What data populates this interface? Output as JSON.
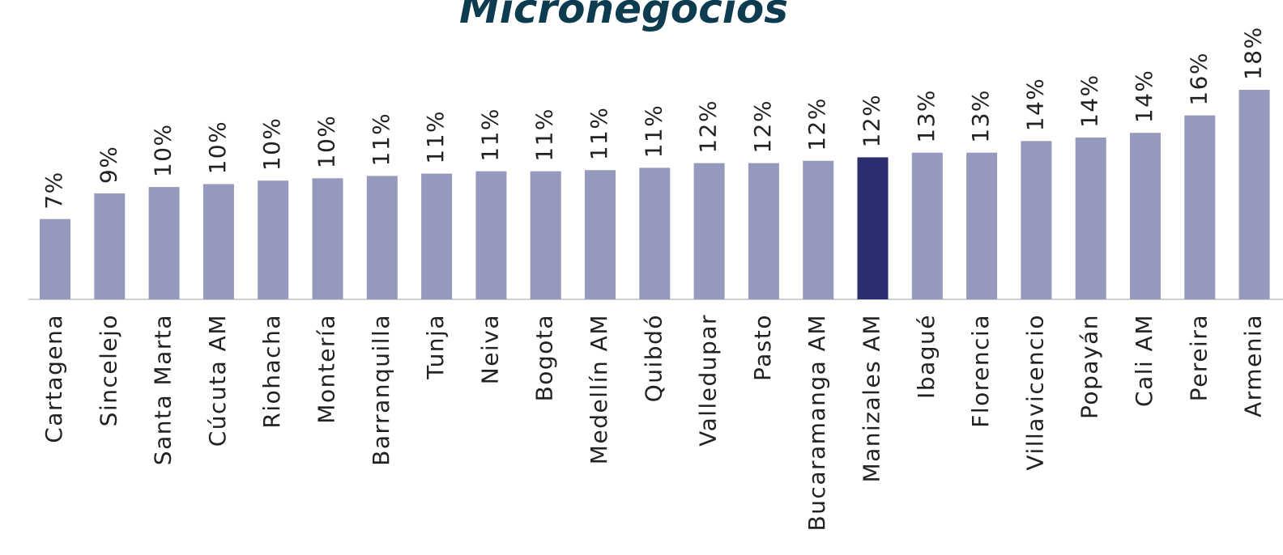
{
  "chart_data": {
    "type": "bar",
    "title": "Micronegocios",
    "categories": [
      "Cartagena",
      "Sincelejo",
      "Santa Marta",
      "Cúcuta AM",
      "Riohacha",
      "Montería",
      "Barranquilla",
      "Tunja",
      "Neiva",
      "Bogota",
      "Medellín AM",
      "Quibdó",
      "Valledupar",
      "Pasto",
      "Bucaramanga AM",
      "Manizales AM",
      "Ibagué",
      "Florencia",
      "Villavicencio",
      "Popayán",
      "Cali AM",
      "Pereira",
      "Armenia"
    ],
    "values": [
      6.9,
      9.1,
      9.65,
      9.9,
      10.2,
      10.4,
      10.6,
      10.8,
      11.0,
      11.0,
      11.1,
      11.3,
      11.7,
      11.7,
      11.9,
      12.2,
      12.6,
      12.6,
      13.6,
      13.9,
      14.3,
      15.8,
      18.0
    ],
    "value_labels": [
      "7%",
      "9%",
      "10%",
      "10%",
      "10%",
      "10%",
      "11%",
      "11%",
      "11%",
      "11%",
      "11%",
      "11%",
      "12%",
      "12%",
      "12%",
      "12%",
      "13%",
      "13%",
      "14%",
      "14%",
      "14%",
      "16%",
      "18%"
    ],
    "colors": [
      "#9599bd",
      "#9599bd",
      "#9599bd",
      "#9599bd",
      "#9599bd",
      "#9599bd",
      "#9599bd",
      "#9599bd",
      "#9599bd",
      "#9599bd",
      "#9599bd",
      "#9599bd",
      "#9599bd",
      "#9599bd",
      "#9599bd",
      "#2b2e6e",
      "#9599bd",
      "#9599bd",
      "#9599bd",
      "#9599bd",
      "#9599bd",
      "#9599bd",
      "#9599bd"
    ],
    "ylim": [
      0,
      18
    ]
  }
}
